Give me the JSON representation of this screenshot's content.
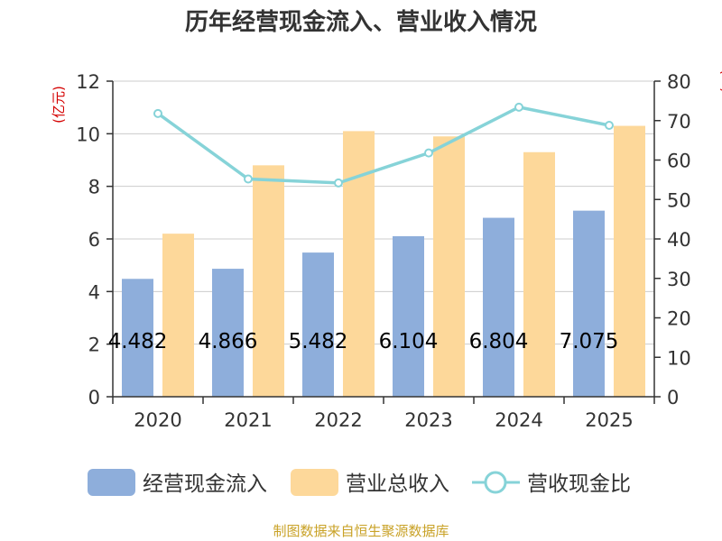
{
  "chart_data": {
    "type": "bar",
    "title": "历年经营现金流入、营业收入情况",
    "categories": [
      "2020",
      "2021",
      "2022",
      "2023",
      "2024",
      "2025"
    ],
    "series": [
      {
        "name": "经营现金流入",
        "kind": "bar",
        "axis": "left",
        "color": "#8eaedb",
        "values": [
          4.482,
          4.866,
          5.482,
          6.104,
          6.804,
          7.075
        ],
        "labels": [
          "4.482",
          "4.866",
          "5.482",
          "6.104",
          "6.804",
          "7.075"
        ]
      },
      {
        "name": "营业总收入",
        "kind": "bar",
        "axis": "left",
        "color": "#fdd89a",
        "values": [
          6.2,
          8.8,
          10.1,
          9.9,
          9.3,
          10.3
        ]
      },
      {
        "name": "营收现金比",
        "kind": "line",
        "axis": "right",
        "color": "#86d3d8",
        "values": [
          71.8,
          55.2,
          54.2,
          61.8,
          73.4,
          68.8
        ]
      }
    ],
    "y_left": {
      "label": "(亿元)",
      "min": 0,
      "max": 12,
      "ticks": [
        0,
        2,
        4,
        6,
        8,
        10,
        12
      ]
    },
    "y_right": {
      "label": "(%)",
      "min": 0,
      "max": 80,
      "ticks": [
        0,
        10,
        20,
        30,
        40,
        50,
        60,
        70,
        80
      ]
    },
    "grid": true,
    "legend_position": "bottom"
  },
  "source": "制图数据来自恒生聚源数据库"
}
